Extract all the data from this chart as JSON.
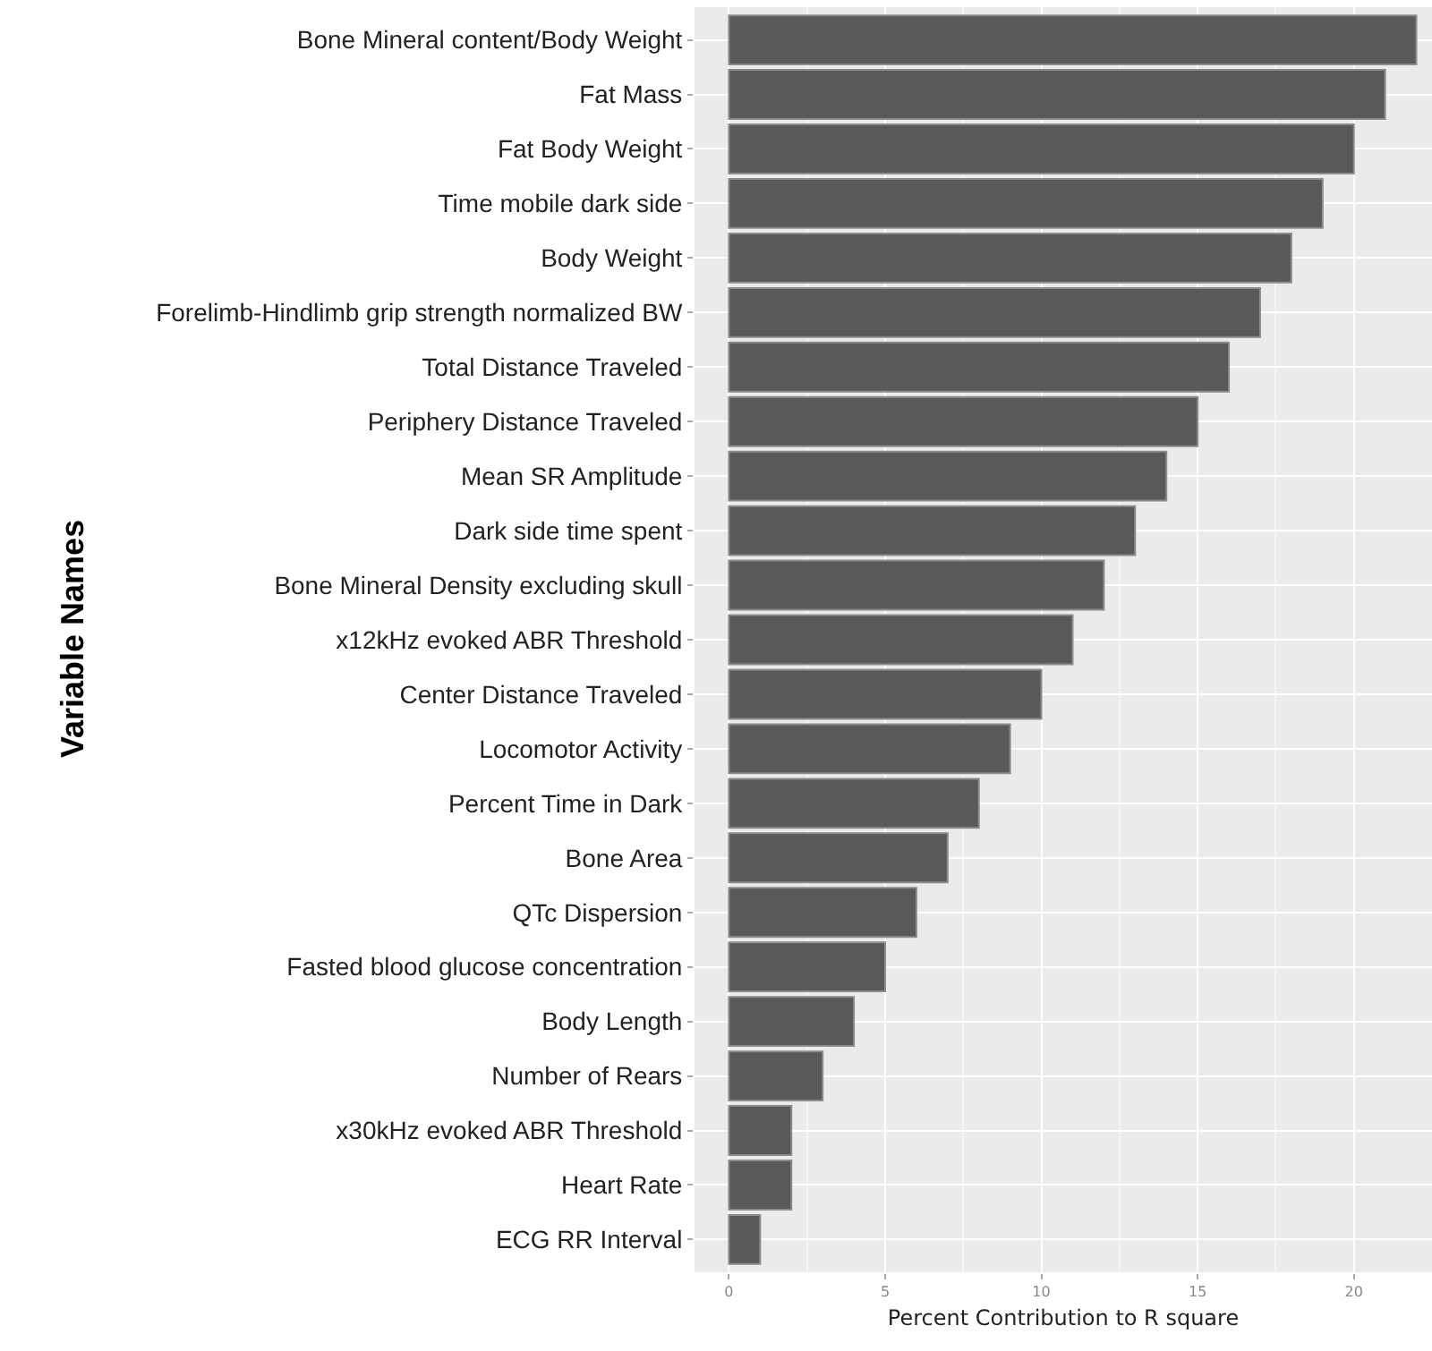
{
  "chart_data": {
    "type": "bar",
    "orientation": "horizontal",
    "xlabel": "Percent Contribution to R square",
    "ylabel": "Variable Names",
    "categories": [
      "Bone Mineral content/Body Weight",
      "Fat Mass",
      "Fat Body Weight",
      "Time mobile dark side",
      "Body Weight",
      "Forelimb-Hindlimb grip strength normalized BW",
      "Total Distance Traveled",
      "Periphery Distance Traveled",
      "Mean SR Amplitude",
      "Dark side time spent",
      "Bone Mineral Density excluding skull",
      "x12kHz evoked ABR Threshold",
      "Center Distance Traveled",
      "Locomotor Activity",
      "Percent Time in Dark",
      "Bone Area",
      "QTc Dispersion",
      "Fasted blood glucose concentration",
      "Body Length",
      "Number of Rears",
      "x30kHz evoked ABR Threshold",
      "Heart Rate",
      "ECG RR Interval"
    ],
    "values": [
      22,
      21,
      20,
      19,
      18,
      17,
      16,
      15,
      14,
      13,
      12,
      11,
      10,
      9,
      8,
      7,
      6,
      5,
      4,
      3,
      2,
      2,
      1
    ],
    "color": "#595959",
    "xlim": [
      -1.1,
      22.5
    ],
    "xticks": [
      0,
      5,
      10,
      15,
      20
    ],
    "grid": true
  }
}
